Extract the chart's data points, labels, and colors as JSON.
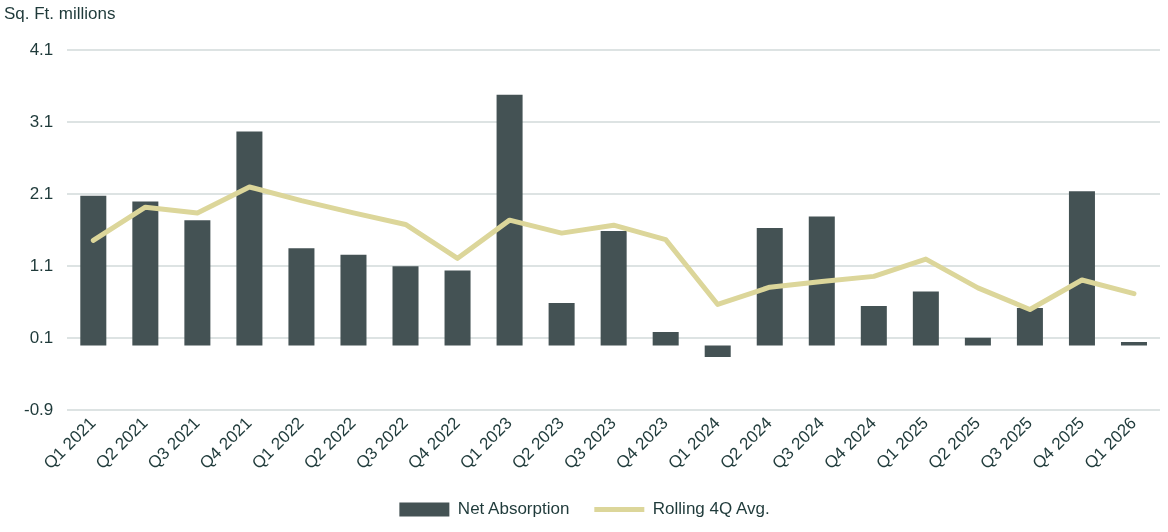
{
  "chart_data": {
    "type": "bar",
    "ylabel": "Sq. Ft. millions",
    "categories": [
      "Q1 2021",
      "Q2 2021",
      "Q3 2021",
      "Q4 2021",
      "Q1 2022",
      "Q2 2022",
      "Q3 2022",
      "Q4 2022",
      "Q1 2023",
      "Q2 2023",
      "Q3 2023",
      "Q4 2023",
      "Q1 2024",
      "Q2 2024",
      "Q3 2024",
      "Q4 2024",
      "Q1 2025",
      "Q2 2025",
      "Q3 2025",
      "Q4 2025",
      "Q1 2026"
    ],
    "series": [
      {
        "name": "Net Absorption",
        "color": "#445254",
        "values": [
          2.08,
          2.0,
          1.74,
          2.97,
          1.35,
          1.26,
          1.1,
          1.04,
          3.48,
          0.59,
          1.59,
          0.19,
          -0.16,
          1.63,
          1.79,
          0.55,
          0.75,
          0.11,
          0.52,
          2.14,
          0.05
        ]
      },
      {
        "name": "Rolling 4Q Avg.",
        "type": "line",
        "color": "#dcd69a",
        "values": [
          1.46,
          1.92,
          1.84,
          2.2,
          2.01,
          1.84,
          1.68,
          1.21,
          1.74,
          1.56,
          1.67,
          1.47,
          0.57,
          0.81,
          0.89,
          0.96,
          1.2,
          0.8,
          0.5,
          0.91,
          0.72
        ]
      }
    ],
    "ylim": [
      -0.9,
      4.1
    ],
    "yticks": [
      -0.9,
      0.1,
      1.1,
      2.1,
      3.1,
      4.1
    ],
    "grid": "y",
    "legend": "bottom",
    "marker": "none"
  }
}
